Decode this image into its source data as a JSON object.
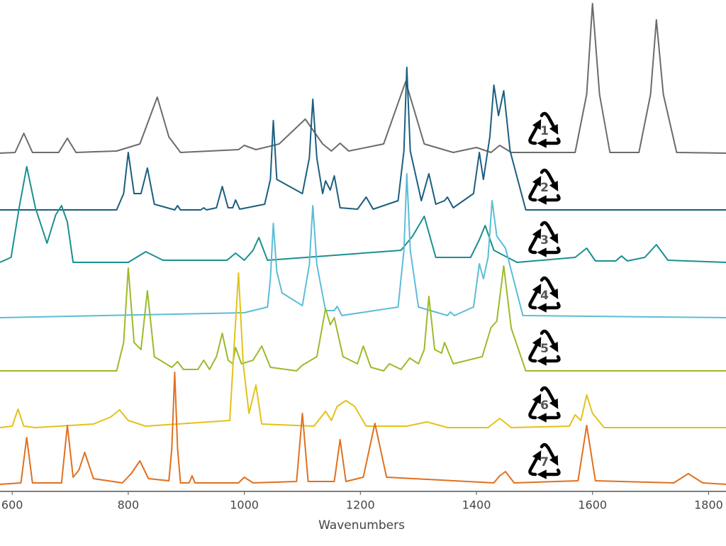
{
  "chart_data": {
    "type": "line",
    "x_label": "Wavenumbers",
    "xlim": [
      579,
      1830
    ],
    "xticks": [
      600,
      800,
      1000,
      1200,
      1400,
      1600,
      1800
    ],
    "ylim": [
      0,
      693
    ],
    "series": [
      {
        "name": "1",
        "color": "#6b6b6b",
        "x": [
          579,
          605,
          620,
          635,
          680,
          695,
          710,
          780,
          820,
          850,
          870,
          890,
          990,
          1000,
          1020,
          1060,
          1105,
          1135,
          1150,
          1165,
          1180,
          1240,
          1278,
          1310,
          1360,
          1400,
          1425,
          1440,
          1460,
          1570,
          1590,
          1600,
          1612,
          1630,
          1680,
          1700,
          1710,
          1722,
          1745,
          1830
        ],
        "values": [
          477,
          478,
          505,
          478,
          478,
          498,
          478,
          480,
          490,
          556,
          500,
          478,
          482,
          488,
          482,
          490,
          525,
          490,
          480,
          491,
          480,
          490,
          578,
          490,
          478,
          485,
          478,
          488,
          478,
          478,
          560,
          688,
          560,
          478,
          478,
          560,
          665,
          560,
          478,
          477
        ]
      },
      {
        "name": "2",
        "color": "#1b5e80",
        "x": [
          579,
          780,
          792,
          800,
          810,
          822,
          833,
          845,
          880,
          885,
          890,
          925,
          930,
          935,
          952,
          962,
          972,
          980,
          985,
          992,
          1035,
          1045,
          1050,
          1056,
          1100,
          1112,
          1118,
          1125,
          1135,
          1140,
          1148,
          1155,
          1165,
          1195,
          1210,
          1222,
          1265,
          1275,
          1280,
          1286,
          1305,
          1318,
          1330,
          1345,
          1350,
          1360,
          1395,
          1405,
          1412,
          1423,
          1430,
          1438,
          1447,
          1458,
          1485,
          1830
        ],
        "values": [
          397,
          397,
          420,
          478,
          420,
          420,
          456,
          405,
          397,
          403,
          397,
          397,
          400,
          397,
          400,
          430,
          400,
          400,
          411,
          398,
          405,
          440,
          523,
          440,
          420,
          470,
          553,
          470,
          420,
          438,
          425,
          445,
          400,
          398,
          415,
          398,
          410,
          480,
          598,
          480,
          410,
          448,
          405,
          410,
          415,
          400,
          420,
          478,
          440,
          500,
          573,
          530,
          565,
          480,
          397,
          397
        ]
      },
      {
        "name": "3",
        "color": "#1a8f8f",
        "x": [
          579,
          598,
          612,
          625,
          640,
          660,
          675,
          685,
          695,
          705,
          800,
          830,
          860,
          970,
          985,
          1000,
          1015,
          1025,
          1040,
          1270,
          1290,
          1310,
          1330,
          1390,
          1405,
          1415,
          1430,
          1470,
          1570,
          1590,
          1605,
          1640,
          1650,
          1660,
          1690,
          1710,
          1730,
          1830
        ],
        "values": [
          323,
          330,
          400,
          458,
          400,
          350,
          390,
          403,
          380,
          323,
          323,
          338,
          326,
          326,
          336,
          326,
          340,
          358,
          326,
          340,
          360,
          388,
          330,
          330,
          355,
          375,
          340,
          323,
          330,
          343,
          325,
          325,
          332,
          325,
          330,
          348,
          326,
          323
        ]
      },
      {
        "name": "4",
        "color": "#5bbdd6",
        "x": [
          579,
          1000,
          1040,
          1045,
          1050,
          1056,
          1065,
          1100,
          1112,
          1118,
          1125,
          1140,
          1155,
          1160,
          1168,
          1265,
          1275,
          1280,
          1286,
          1300,
          1350,
          1355,
          1362,
          1395,
          1405,
          1412,
          1420,
          1427,
          1435,
          1450,
          1480,
          1830
        ],
        "values": [
          245,
          252,
          260,
          300,
          378,
          310,
          280,
          262,
          320,
          403,
          320,
          255,
          255,
          261,
          248,
          260,
          340,
          448,
          340,
          260,
          248,
          253,
          248,
          260,
          321,
          300,
          330,
          410,
          360,
          343,
          248,
          245
        ]
      },
      {
        "name": "5",
        "color": "#9bbb2a",
        "x": [
          579,
          780,
          792,
          800,
          810,
          822,
          833,
          845,
          875,
          885,
          895,
          920,
          930,
          940,
          952,
          962,
          972,
          980,
          985,
          995,
          1015,
          1030,
          1045,
          1090,
          1100,
          1125,
          1140,
          1148,
          1155,
          1170,
          1195,
          1205,
          1218,
          1240,
          1250,
          1270,
          1285,
          1300,
          1310,
          1318,
          1328,
          1340,
          1345,
          1360,
          1410,
          1425,
          1435,
          1447,
          1460,
          1485,
          1830
        ],
        "values": [
          170,
          170,
          210,
          315,
          210,
          200,
          283,
          190,
          175,
          183,
          172,
          172,
          185,
          172,
          190,
          223,
          185,
          180,
          203,
          180,
          185,
          205,
          175,
          170,
          178,
          190,
          258,
          235,
          245,
          190,
          180,
          205,
          175,
          170,
          180,
          172,
          188,
          180,
          200,
          275,
          200,
          195,
          210,
          180,
          190,
          231,
          240,
          318,
          230,
          170,
          170
        ]
      },
      {
        "name": "6",
        "color": "#e3c21a",
        "x": [
          579,
          600,
          610,
          620,
          640,
          740,
          770,
          785,
          800,
          830,
          975,
          982,
          990,
          998,
          1008,
          1020,
          1030,
          1120,
          1140,
          1150,
          1160,
          1175,
          1190,
          1210,
          1280,
          1315,
          1350,
          1420,
          1440,
          1460,
          1560,
          1570,
          1580,
          1590,
          1600,
          1620,
          1830
        ],
        "values": [
          90,
          92,
          116,
          92,
          90,
          95,
          105,
          115,
          100,
          92,
          100,
          200,
          308,
          180,
          110,
          150,
          95,
          92,
          113,
          100,
          120,
          128,
          120,
          92,
          92,
          98,
          90,
          90,
          103,
          90,
          92,
          108,
          100,
          136,
          110,
          90,
          90
        ]
      },
      {
        "name": "7",
        "color": "#e07020",
        "x": [
          579,
          615,
          625,
          635,
          685,
          695,
          705,
          715,
          725,
          740,
          790,
          805,
          820,
          835,
          870,
          875,
          880,
          885,
          890,
          905,
          910,
          915,
          990,
          1000,
          1015,
          1090,
          1100,
          1110,
          1155,
          1165,
          1175,
          1205,
          1225,
          1245,
          1430,
          1440,
          1450,
          1465,
          1575,
          1590,
          1605,
          1740,
          1765,
          1790,
          1830
        ],
        "values": [
          10,
          12,
          76,
          12,
          12,
          93,
          20,
          30,
          55,
          18,
          12,
          25,
          43,
          18,
          15,
          60,
          168,
          60,
          12,
          12,
          22,
          12,
          12,
          20,
          12,
          14,
          110,
          14,
          14,
          73,
          14,
          20,
          96,
          20,
          12,
          22,
          28,
          12,
          15,
          93,
          15,
          12,
          25,
          12,
          10
        ]
      }
    ]
  }
}
